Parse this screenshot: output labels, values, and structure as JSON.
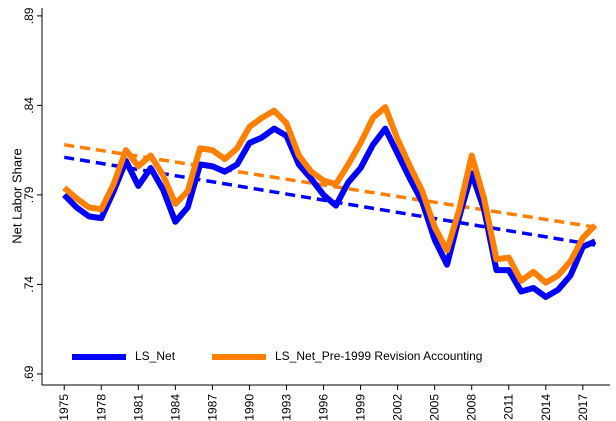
{
  "chart_data": {
    "type": "line",
    "y_label": "Net Labor Share",
    "x": [
      1975,
      1976,
      1977,
      1978,
      1979,
      1980,
      1981,
      1982,
      1983,
      1984,
      1985,
      1986,
      1987,
      1988,
      1989,
      1990,
      1991,
      1992,
      1993,
      1994,
      1995,
      1996,
      1997,
      1998,
      1999,
      2000,
      2001,
      2002,
      2003,
      2004,
      2005,
      2006,
      2007,
      2008,
      2009,
      2010,
      2011,
      2012,
      2013,
      2014,
      2015,
      2016,
      2017,
      2018
    ],
    "series": [
      {
        "name": "LS_Net",
        "color": "#0000ff",
        "values": [
          0.79,
          0.783,
          0.778,
          0.777,
          0.792,
          0.809,
          0.795,
          0.805,
          0.793,
          0.775,
          0.783,
          0.807,
          0.806,
          0.803,
          0.807,
          0.819,
          0.822,
          0.827,
          0.823,
          0.807,
          0.799,
          0.79,
          0.784,
          0.797,
          0.805,
          0.818,
          0.827,
          0.813,
          0.799,
          0.786,
          0.765,
          0.751,
          0.778,
          0.802,
          0.782,
          0.748,
          0.748,
          0.736,
          0.738,
          0.733,
          0.737,
          0.745,
          0.761,
          0.764
        ]
      },
      {
        "name": "LS_Net_Pre-1999 Revision Accounting",
        "color": "#ff8000",
        "values": [
          0.794,
          0.788,
          0.783,
          0.782,
          0.796,
          0.815,
          0.806,
          0.812,
          0.801,
          0.785,
          0.792,
          0.816,
          0.815,
          0.81,
          0.816,
          0.828,
          0.833,
          0.837,
          0.83,
          0.812,
          0.803,
          0.798,
          0.796,
          0.807,
          0.819,
          0.833,
          0.839,
          0.821,
          0.806,
          0.792,
          0.772,
          0.759,
          0.782,
          0.812,
          0.788,
          0.754,
          0.755,
          0.742,
          0.747,
          0.741,
          0.745,
          0.753,
          0.766,
          0.773
        ]
      }
    ],
    "fits": [
      {
        "color": "#0000ff",
        "x": [
          1975,
          2018
        ],
        "values": [
          0.811,
          0.762
        ]
      },
      {
        "color": "#ff8000",
        "x": [
          1975,
          2018
        ],
        "values": [
          0.818,
          0.772
        ]
      }
    ],
    "xlim": [
      1973.2,
      2019.2
    ],
    "xticks": [
      1975,
      1978,
      1981,
      1984,
      1987,
      1990,
      1993,
      1996,
      1999,
      2002,
      2005,
      2008,
      2011,
      2014,
      2017
    ],
    "ylim": [
      0.6838,
      0.8944
    ],
    "yticks": [
      {
        "value": 0.69,
        "label": ".69"
      },
      {
        "value": 0.74,
        "label": ".74"
      },
      {
        "value": 0.79,
        "label": ".79"
      },
      {
        "value": 0.84,
        "label": ".84"
      },
      {
        "value": 0.89,
        "label": ".89"
      }
    ],
    "grid": false,
    "legend": "bottom"
  }
}
